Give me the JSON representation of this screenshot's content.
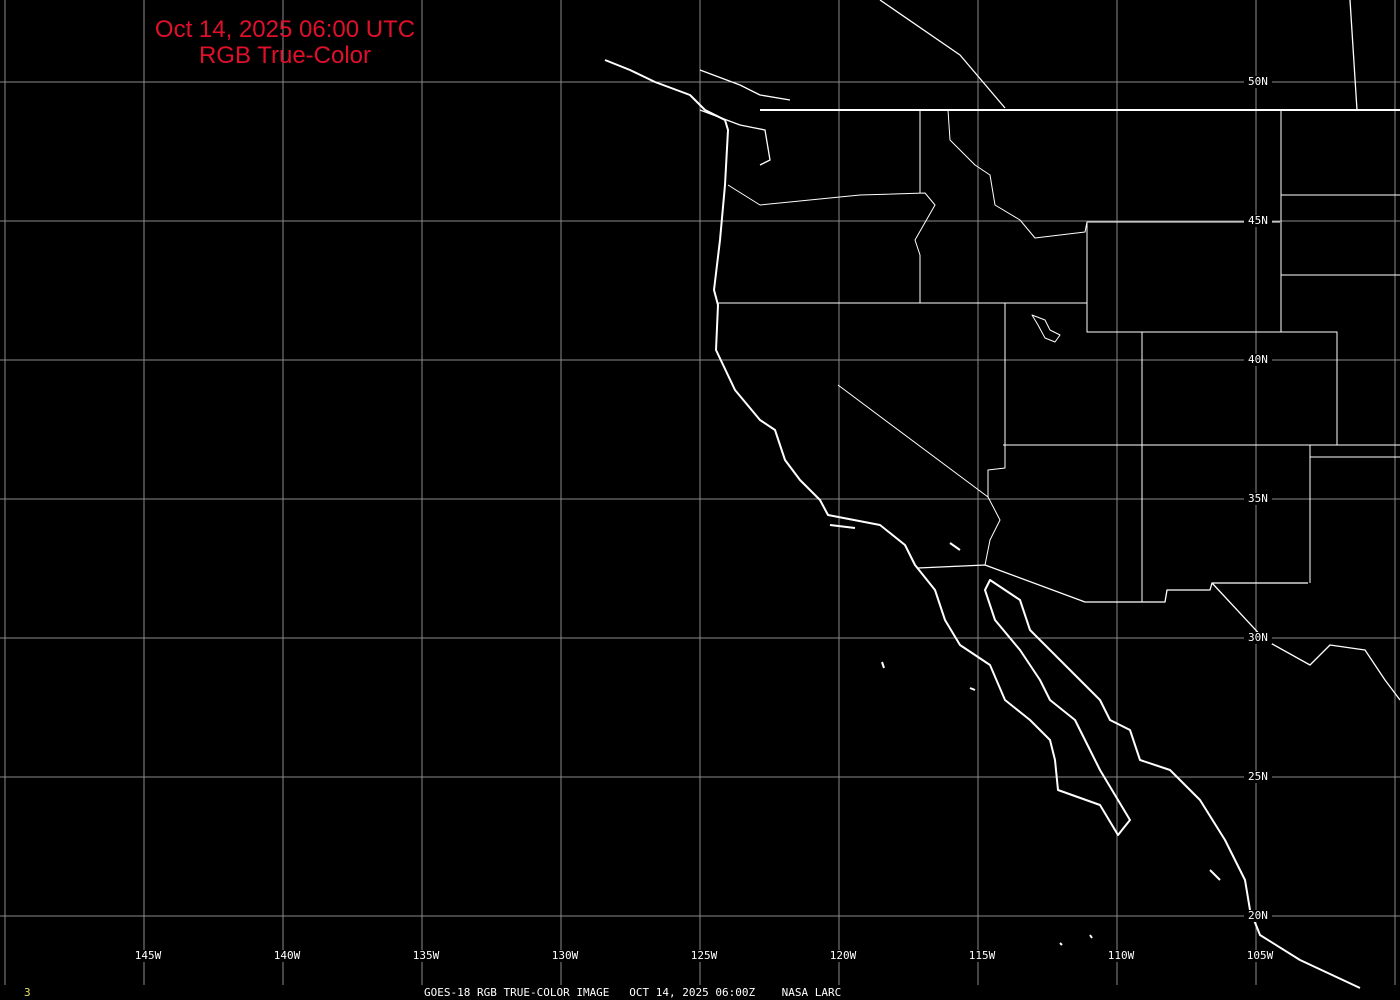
{
  "title": {
    "line1": "Oct 14, 2025 06:00 UTC",
    "line2": "RGB True-Color"
  },
  "latitude_labels": [
    "50N",
    "45N",
    "40N",
    "35N",
    "30N",
    "25N",
    "20N"
  ],
  "longitude_labels": [
    "145W",
    "140W",
    "135W",
    "130W",
    "125W",
    "120W",
    "115W",
    "110W",
    "105W"
  ],
  "caption": "GOES-18 RGB TRUE-COLOR IMAGE   OCT 14, 2025 06:00Z    NASA LARC",
  "frame_number": "3",
  "colors": {
    "background": "#000000",
    "grid": "#8a8a8a",
    "coastline": "#ffffff",
    "title": "#e0102a",
    "frame_number": "#e8e060"
  }
}
